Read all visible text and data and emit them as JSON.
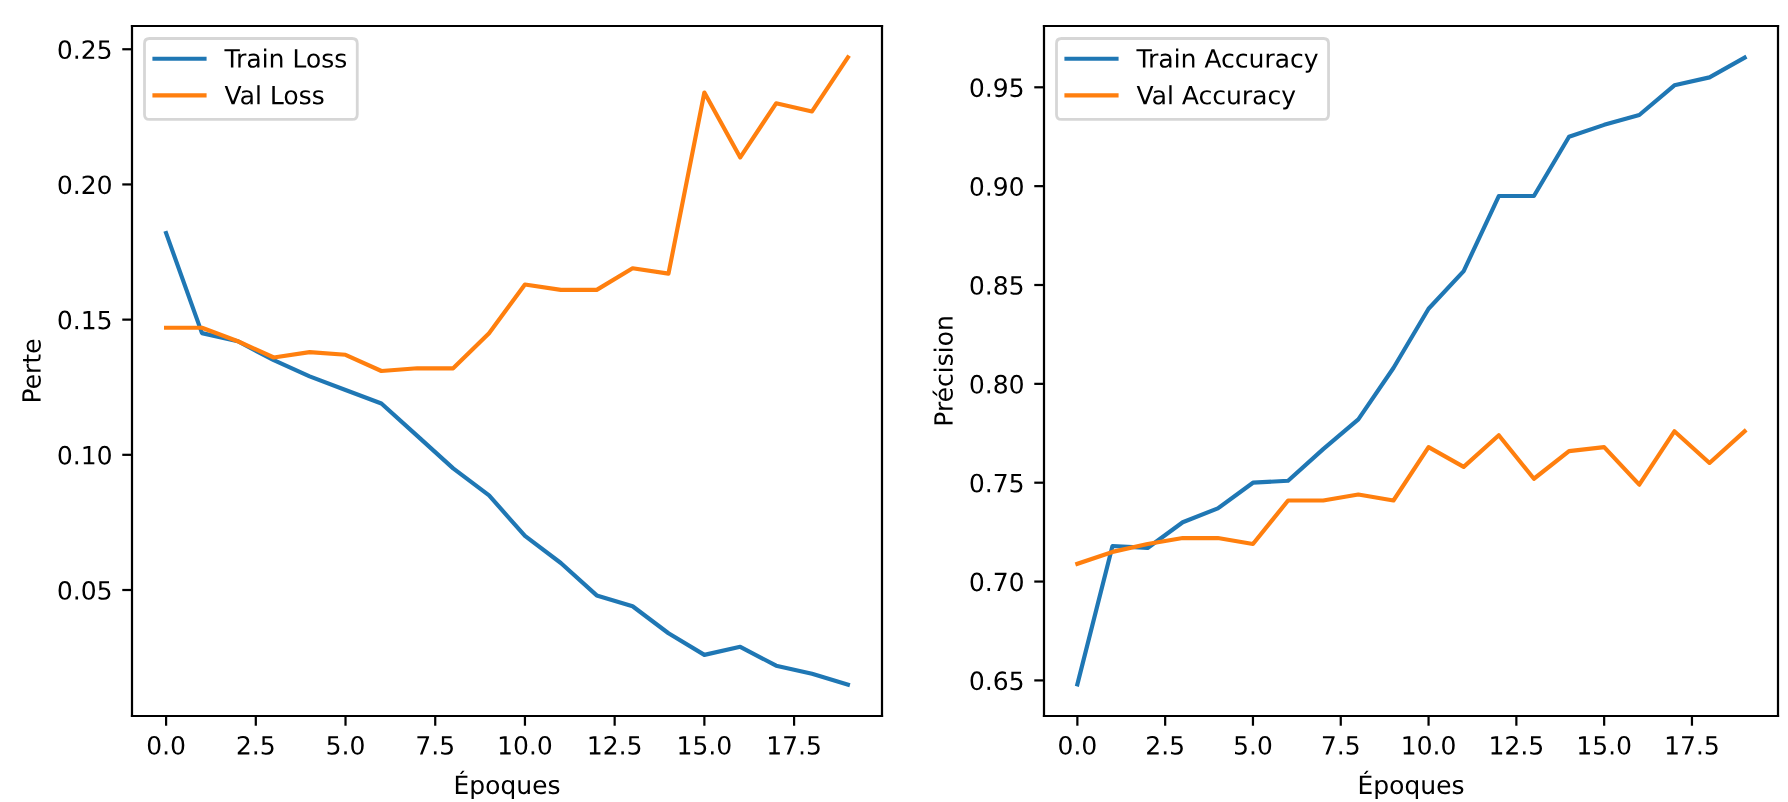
{
  "chart_data": [
    {
      "type": "line",
      "xlabel": "Époques",
      "ylabel": "Perte",
      "x": [
        0,
        1,
        2,
        3,
        4,
        5,
        6,
        7,
        8,
        9,
        10,
        11,
        12,
        13,
        14,
        15,
        16,
        17,
        18,
        19
      ],
      "series": [
        {
          "name": "Train Loss",
          "color": "#1f77b4",
          "values": [
            0.182,
            0.145,
            0.142,
            0.135,
            0.129,
            0.124,
            0.119,
            0.107,
            0.095,
            0.085,
            0.07,
            0.06,
            0.048,
            0.044,
            0.034,
            0.026,
            0.029,
            0.022,
            0.019,
            0.015
          ]
        },
        {
          "name": "Val Loss",
          "color": "#ff7f0e",
          "values": [
            0.147,
            0.147,
            0.142,
            0.136,
            0.138,
            0.137,
            0.131,
            0.132,
            0.132,
            0.145,
            0.163,
            0.161,
            0.161,
            0.169,
            0.167,
            0.234,
            0.21,
            0.23,
            0.227,
            0.247
          ]
        }
      ],
      "xlim": [
        -0.95,
        19.95
      ],
      "xticks": [
        {
          "value": 0,
          "label": "0.0"
        },
        2.5,
        {
          "value": 5,
          "label": "5.0"
        },
        7.5,
        {
          "value": 10,
          "label": "10.0"
        },
        12.5,
        {
          "value": 15,
          "label": "15.0"
        },
        17.5
      ],
      "ylim": [
        0.0034,
        0.2586
      ],
      "yticks": [
        {
          "value": 0.05,
          "label": "0.05"
        },
        {
          "value": 0.1,
          "label": "0.10"
        },
        {
          "value": 0.15,
          "label": "0.15"
        },
        {
          "value": 0.2,
          "label": "0.20"
        },
        {
          "value": 0.25,
          "label": "0.25"
        }
      ],
      "legend": "top left",
      "grid": false,
      "line_style": "solid",
      "marker": "none"
    },
    {
      "type": "line",
      "xlabel": "Époques",
      "ylabel": "Précision",
      "x": [
        0,
        1,
        2,
        3,
        4,
        5,
        6,
        7,
        8,
        9,
        10,
        11,
        12,
        13,
        14,
        15,
        16,
        17,
        18,
        19
      ],
      "series": [
        {
          "name": "Train Accuracy",
          "color": "#1f77b4",
          "values": [
            0.648,
            0.718,
            0.717,
            0.73,
            0.737,
            0.75,
            0.751,
            0.767,
            0.782,
            0.808,
            0.838,
            0.857,
            0.895,
            0.895,
            0.925,
            0.931,
            0.936,
            0.951,
            0.955,
            0.965
          ]
        },
        {
          "name": "Val Accuracy",
          "color": "#ff7f0e",
          "values": [
            0.709,
            0.715,
            0.719,
            0.722,
            0.722,
            0.719,
            0.741,
            0.741,
            0.744,
            0.741,
            0.768,
            0.758,
            0.774,
            0.752,
            0.766,
            0.768,
            0.749,
            0.776,
            0.76,
            0.776
          ]
        }
      ],
      "xlim": [
        -0.95,
        19.95
      ],
      "xticks": [
        {
          "value": 0,
          "label": "0.0"
        },
        2.5,
        {
          "value": 5,
          "label": "5.0"
        },
        7.5,
        {
          "value": 10,
          "label": "10.0"
        },
        12.5,
        {
          "value": 15,
          "label": "15.0"
        },
        17.5
      ],
      "ylim": [
        0.632,
        0.981
      ],
      "yticks": [
        {
          "value": 0.65,
          "label": "0.65"
        },
        {
          "value": 0.7,
          "label": "0.70"
        },
        {
          "value": 0.75,
          "label": "0.75"
        },
        {
          "value": 0.8,
          "label": "0.80"
        },
        {
          "value": 0.85,
          "label": "0.85"
        },
        {
          "value": 0.9,
          "label": "0.90"
        },
        {
          "value": 0.95,
          "label": "0.95"
        }
      ],
      "legend": "top left",
      "grid": false,
      "line_style": "solid",
      "marker": "none"
    }
  ]
}
